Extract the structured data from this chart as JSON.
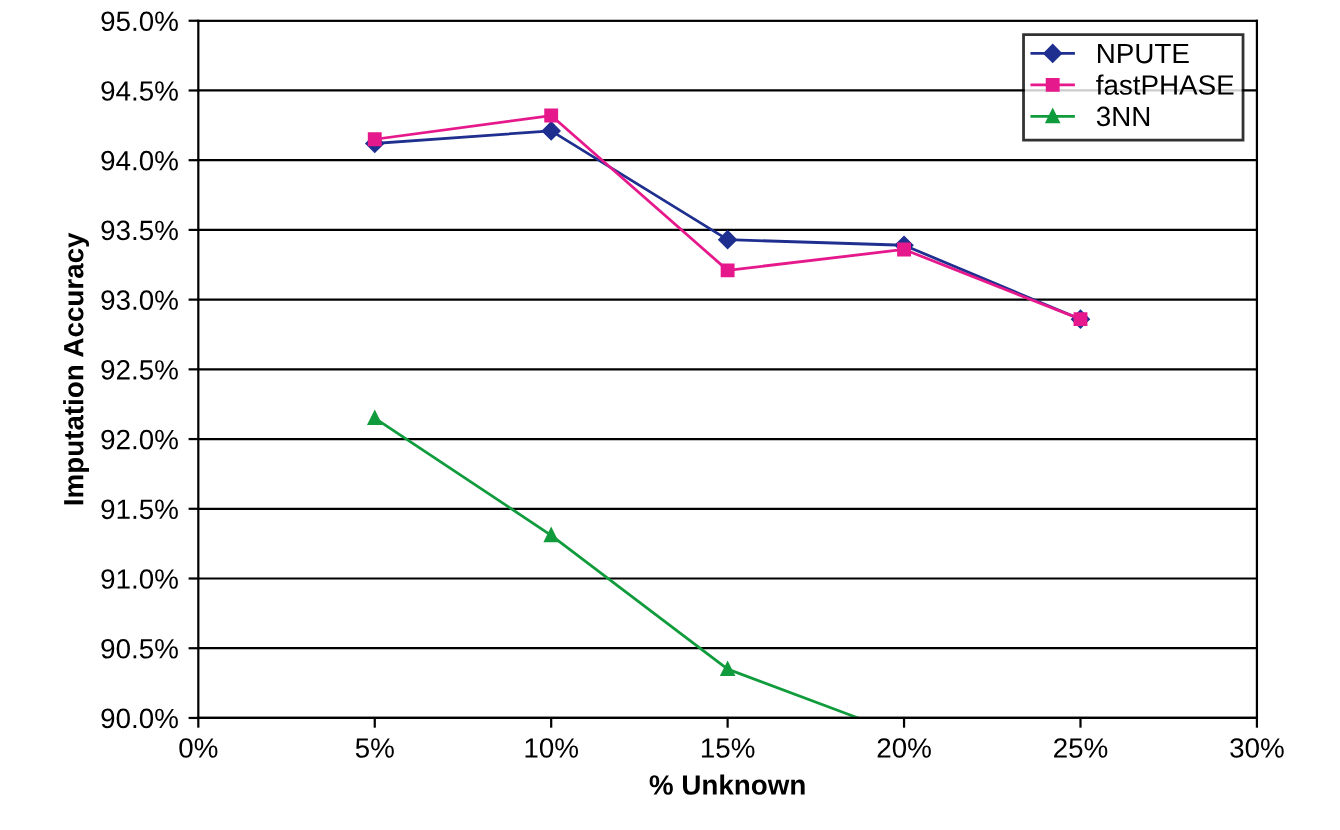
{
  "chart_data": {
    "type": "line",
    "xlabel": "% Unknown",
    "ylabel": "Imputation Accuracy",
    "x": [
      5,
      10,
      15,
      20,
      25
    ],
    "series": [
      {
        "name": "NPUTE",
        "color": "#1f2f8f",
        "marker": "diamond",
        "values": [
          94.12,
          94.21,
          93.43,
          93.39,
          92.86
        ]
      },
      {
        "name": "fastPHASE",
        "color": "#e6198c",
        "marker": "square",
        "values": [
          94.15,
          94.32,
          93.21,
          93.36,
          92.86
        ]
      },
      {
        "name": "3NN",
        "color": "#109b3c",
        "marker": "triangle",
        "x": [
          5,
          10,
          15,
          18.7
        ],
        "values": [
          92.15,
          91.31,
          90.35,
          90.0
        ]
      }
    ],
    "xlim": [
      0,
      30
    ],
    "ylim": [
      90,
      95
    ],
    "xticks": [
      {
        "value": 0,
        "label": "0%"
      },
      {
        "value": 5,
        "label": "5%"
      },
      {
        "value": 10,
        "label": "10%"
      },
      {
        "value": 15,
        "label": "15%"
      },
      {
        "value": 20,
        "label": "20%"
      },
      {
        "value": 25,
        "label": "25%"
      },
      {
        "value": 30,
        "label": "30%"
      }
    ],
    "yticks": [
      {
        "value": 90,
        "label": "90.0%"
      },
      {
        "value": 90.5,
        "label": "90.5%"
      },
      {
        "value": 91,
        "label": "91.0%"
      },
      {
        "value": 91.5,
        "label": "91.5%"
      },
      {
        "value": 92,
        "label": "92.0%"
      },
      {
        "value": 92.5,
        "label": "92.5%"
      },
      {
        "value": 93,
        "label": "93.0%"
      },
      {
        "value": 93.5,
        "label": "93.5%"
      },
      {
        "value": 94,
        "label": "94.0%"
      },
      {
        "value": 94.5,
        "label": "94.5%"
      },
      {
        "value": 95,
        "label": "95.0%"
      }
    ],
    "grid": "y",
    "legend": "top right",
    "line_style": "solid"
  }
}
